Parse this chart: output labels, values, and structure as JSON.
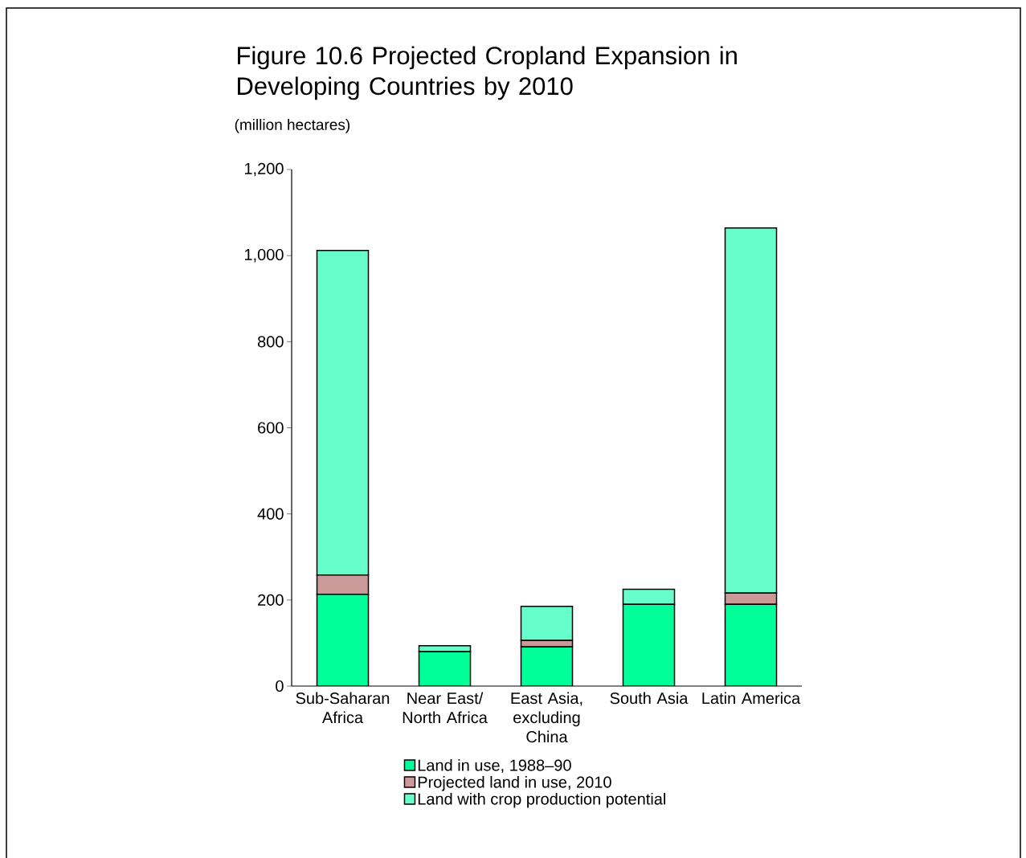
{
  "chart_data": {
    "type": "bar",
    "title": "Figure 10.6 Projected Cropland Expansion in Developing Countries by 2010",
    "ylabel": "(million hectares)",
    "categories": [
      "Sub-Saharan Africa",
      "Near East/ North Africa",
      "East Asia, excluding China",
      "South Asia",
      "Latin America"
    ],
    "series": [
      {
        "name": "Land in use, 1988–90",
        "color": "#00ff99",
        "values": [
          213,
          80,
          91,
          190,
          190
        ]
      },
      {
        "name": "Projected land in use, 2010",
        "color": "#cc9999",
        "values": [
          45,
          null,
          15,
          null,
          26
        ]
      },
      {
        "name": "Land with crop production potential",
        "color": "#66ffcc",
        "values": [
          754,
          14,
          79,
          35,
          848
        ]
      }
    ],
    "stacked": true,
    "ylim": [
      0,
      1200
    ],
    "yticks": [
      0,
      200,
      400,
      600,
      800,
      {
        "value": 1000,
        "label": "1,000"
      },
      {
        "value": 1200,
        "label": "1,200"
      }
    ],
    "legend": "bottom"
  }
}
